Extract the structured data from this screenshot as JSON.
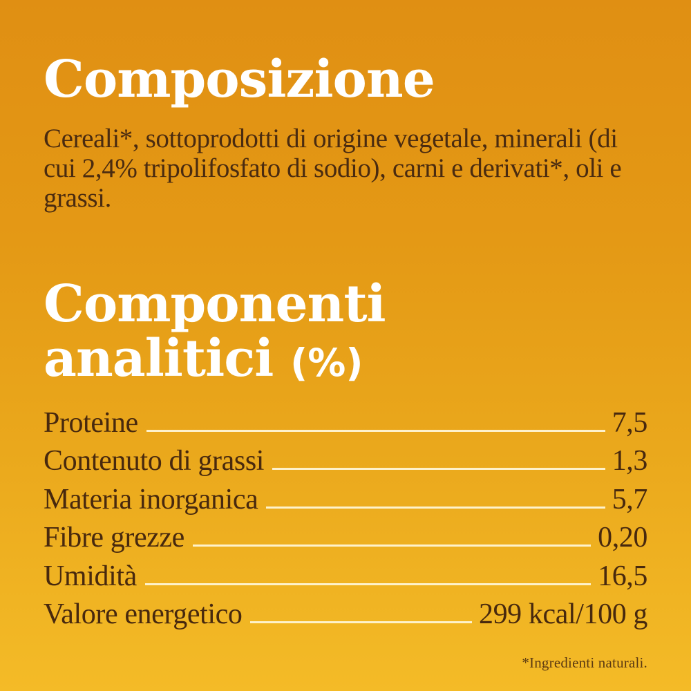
{
  "composition": {
    "title": "Composizione",
    "body": "Cereali*, sottoprodotti di origine vegetale, minerali (di cui 2,4% tripolifosfato di sodio), carni e derivati*, oli e grassi."
  },
  "analytical": {
    "title_line1": "Componenti",
    "title_line2": "analitici",
    "title_unit": "(%)",
    "rows": [
      {
        "label": "Proteine",
        "value": "7,5"
      },
      {
        "label": "Contenuto di grassi",
        "value": "1,3"
      },
      {
        "label": "Materia inorganica",
        "value": "5,7"
      },
      {
        "label": "Fibre grezze",
        "value": "0,20"
      },
      {
        "label": "Umidità",
        "value": "16,5"
      },
      {
        "label": "Valore energetico",
        "value": "299 kcal/100 g"
      }
    ]
  },
  "footnote": "*Ingredienti naturali.",
  "colors": {
    "background_top": "#E08F13",
    "background_bottom": "#F4BB27",
    "heading": "#FFFFFF",
    "text": "#4A2B10",
    "leader_line": "#FFF7DA"
  }
}
